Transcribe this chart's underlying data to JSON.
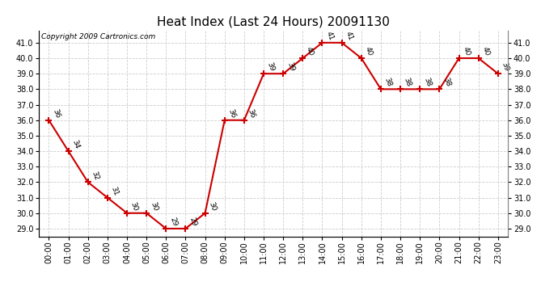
{
  "title": "Heat Index (Last 24 Hours) 20091130",
  "copyright": "Copyright 2009 Cartronics.com",
  "hours": [
    "00:00",
    "01:00",
    "02:00",
    "03:00",
    "04:00",
    "05:00",
    "06:00",
    "07:00",
    "08:00",
    "09:00",
    "10:00",
    "11:00",
    "12:00",
    "13:00",
    "14:00",
    "15:00",
    "16:00",
    "17:00",
    "18:00",
    "19:00",
    "20:00",
    "21:00",
    "22:00",
    "23:00"
  ],
  "values": [
    36,
    34,
    32,
    31,
    30,
    30,
    29,
    29,
    30,
    36,
    36,
    39,
    39,
    40,
    41,
    41,
    40,
    38,
    38,
    38,
    38,
    40,
    40,
    39
  ],
  "ylim": [
    28.5,
    41.8
  ],
  "yticks": [
    29.0,
    30.0,
    31.0,
    32.0,
    33.0,
    34.0,
    35.0,
    36.0,
    37.0,
    38.0,
    39.0,
    40.0,
    41.0
  ],
  "line_color": "#cc0000",
  "marker": "+",
  "marker_size": 6,
  "marker_linewidth": 1.5,
  "line_width": 1.5,
  "bg_color": "#ffffff",
  "grid_color": "#cccccc",
  "title_fontsize": 11,
  "label_fontsize": 7,
  "copyright_fontsize": 6.5,
  "annot_fontsize": 6.5
}
